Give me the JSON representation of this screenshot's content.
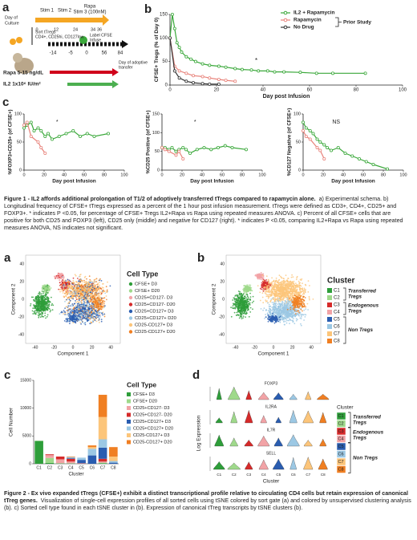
{
  "figure1": {
    "panel_a": {
      "label": "a",
      "stim1": "Stim 1",
      "stim2": "Stim 2",
      "rapa": "Rapa",
      "stim3": "Stim 3 (100nM)",
      "culture_label": [
        "Day of",
        "Culture"
      ],
      "culture_days": [
        "0",
        "12",
        "24",
        "34",
        "36"
      ],
      "sort": [
        "Sort tTregs",
        "CD4+, CD25hi, CD127low"
      ],
      "label_cfse": [
        "Label CFSE",
        "Infuse"
      ],
      "transfer_days": [
        "-14",
        "-5",
        "0",
        "56",
        "84"
      ],
      "transfer_label": [
        "Day of adoptive",
        "transfer"
      ],
      "rapa_dose": "Rapa 5-15 ng/dL",
      "il2_dose": "IL2 1x10⁶ IU/m²"
    },
    "panel_b": {
      "label": "b",
      "type": "line",
      "ylabel": "CFSE+ Tregs (% of Day 0)",
      "xlabel": "Day post Infusion",
      "xlim": [
        0,
        100
      ],
      "ylim": [
        0,
        150
      ],
      "xticks": [
        0,
        20,
        40,
        60,
        80,
        100
      ],
      "yticks": [
        0,
        50,
        100,
        150
      ],
      "annotation": "*",
      "bracket_label": "Prior Study",
      "series": [
        {
          "name": "IL2 + Rapamycin",
          "color": "#3aa83a",
          "x": [
            0,
            1,
            2,
            3,
            4,
            5,
            7,
            9,
            11,
            14,
            17,
            21,
            24,
            28,
            31,
            35,
            38,
            42,
            45,
            49,
            56,
            63,
            70,
            84
          ],
          "values": [
            100,
            150,
            120,
            90,
            80,
            70,
            60,
            55,
            50,
            45,
            42,
            40,
            38,
            35,
            33,
            32,
            30,
            30,
            28,
            28,
            27,
            25,
            25,
            25
          ]
        },
        {
          "name": "Rapamycin",
          "color": "#e8827a",
          "x": [
            0,
            2,
            4,
            7,
            10,
            14,
            17,
            21,
            24,
            28
          ],
          "values": [
            100,
            40,
            30,
            25,
            20,
            18,
            15,
            12,
            10,
            8
          ]
        },
        {
          "name": "No Drug",
          "color": "#333333",
          "x": [
            0,
            2,
            4,
            7,
            10,
            14,
            17,
            21
          ],
          "values": [
            100,
            30,
            15,
            8,
            5,
            3,
            2,
            2
          ]
        }
      ]
    },
    "panel_c": {
      "label": "c",
      "charts": [
        {
          "type": "line",
          "ylabel": "%FOXP3+CD25+ (of CFSE+)",
          "xlabel": "Day post Infusion",
          "xlim": [
            0,
            100
          ],
          "ylim": [
            0,
            100
          ],
          "xticks": [
            0,
            20,
            40,
            60,
            80,
            100
          ],
          "yticks": [
            0,
            50,
            100
          ],
          "annotation": "*",
          "series": [
            {
              "color": "#3aa83a",
              "x": [
                0,
                3,
                7,
                10,
                14,
                17,
                21,
                24,
                28,
                35,
                42,
                49,
                56,
                63,
                70,
                84
              ],
              "values": [
                75,
                80,
                85,
                70,
                75,
                70,
                60,
                65,
                55,
                60,
                65,
                70,
                60,
                65,
                60,
                65
              ]
            },
            {
              "color": "#e8827a",
              "x": [
                0,
                3,
                7,
                14,
                17,
                21
              ],
              "values": [
                80,
                85,
                60,
                50,
                40,
                30
              ]
            }
          ]
        },
        {
          "type": "line",
          "ylabel": "%CD25 Positive (of CFSE+)",
          "xlabel": "Day post Infusion",
          "xlim": [
            0,
            100
          ],
          "ylim": [
            0,
            150
          ],
          "xticks": [
            0,
            20,
            40,
            60,
            80,
            100
          ],
          "yticks": [
            0,
            50,
            100,
            150
          ],
          "annotation": "*",
          "series": [
            {
              "color": "#3aa83a",
              "x": [
                0,
                3,
                7,
                10,
                14,
                17,
                21,
                24,
                28,
                35,
                42,
                49,
                56,
                63,
                70,
                84
              ],
              "values": [
                60,
                60,
                55,
                60,
                50,
                55,
                60,
                55,
                45,
                55,
                60,
                55,
                60,
                65,
                60,
                55
              ]
            },
            {
              "color": "#e8827a",
              "x": [
                0,
                3,
                7,
                14,
                17,
                21
              ],
              "values": [
                60,
                55,
                50,
                40,
                50,
                30
              ]
            }
          ]
        },
        {
          "type": "line",
          "ylabel": "%CD127 Negative (of CFSE+)",
          "xlabel": "Day post Infusion",
          "xlim": [
            0,
            100
          ],
          "ylim": [
            0,
            100
          ],
          "xticks": [
            0,
            20,
            40,
            60,
            80,
            100
          ],
          "yticks": [
            0,
            50,
            100
          ],
          "annotation": "NS",
          "series": [
            {
              "color": "#3aa83a",
              "x": [
                0,
                3,
                7,
                10,
                14,
                17,
                21,
                24,
                28,
                35,
                42,
                49,
                56,
                63,
                70,
                84
              ],
              "values": [
                85,
                75,
                70,
                65,
                55,
                50,
                45,
                40,
                35,
                40,
                30,
                25,
                20,
                15,
                10,
                2
              ]
            },
            {
              "color": "#e8827a",
              "x": [
                0,
                3,
                7,
                14,
                17,
                21
              ],
              "values": [
                70,
                60,
                55,
                40,
                35,
                20
              ]
            }
          ]
        }
      ]
    },
    "caption": {
      "title": "Figure 1 - IL2 affords additional prolongation of T1/2 of adoptively transferred tTregs compared to rapamycin alone.",
      "body": "a) Experimental schema.  b) Longitudinal frequency of CFSE+ tTregs expressed as a percent of the 1 hour post infusion measurement. tTregs were defined as CD3+, CD4+, CD25+ and FOXP3+.  * indicates P <0.05, for percentage of CFSE+ Tregs IL2+Rapa vs Rapa using repeated measures ANOVA.  c) Percent of all CFSE+ cells that are positive for both CD25 and FOXP3 (left), CD25 only (middle) and negative for CD127 (right). * indicates P <0.05,  comparing IL2+Rapa vs Rapa using repeated measures ANOVA, NS indicates not significant."
    }
  },
  "figure2": {
    "panel_a": {
      "label": "a",
      "legend_title": "Cell Type",
      "xlabel": "Component 1",
      "ylabel": "Component 2",
      "xticks": [
        "-40",
        "-20",
        "0",
        "20",
        "40"
      ],
      "yticks": [
        "-40",
        "-20",
        "0",
        "20",
        "40"
      ],
      "legend": [
        {
          "name": "CFSE+ D3",
          "color": "#2e9e3a"
        },
        {
          "name": "CFSE+ D20",
          "color": "#9fd98b"
        },
        {
          "name": "CD25+CD127- D3",
          "color": "#f2a3a6"
        },
        {
          "name": "CD25+CD127- D20",
          "color": "#d62a2a"
        },
        {
          "name": "CD25+CD127+ D3",
          "color": "#2a5db0"
        },
        {
          "name": "CD25+CD127+ D20",
          "color": "#9cc8e4"
        },
        {
          "name": "CD25-CD127+ D3",
          "color": "#fcc57a"
        },
        {
          "name": "CD25-CD127+ D20",
          "color": "#f07f22"
        }
      ]
    },
    "panel_b": {
      "label": "b",
      "legend_title": "Cluster",
      "xlabel": "Component 1",
      "ylabel": "Component 2",
      "xticks": [
        "-40",
        "-20",
        "0",
        "20",
        "40"
      ],
      "yticks": [
        "-40",
        "-20",
        "0",
        "20",
        "40"
      ],
      "clusters": [
        {
          "name": "C1",
          "color": "#2e9e3a"
        },
        {
          "name": "C2",
          "color": "#9fd98b"
        },
        {
          "name": "C3",
          "color": "#d62a2a"
        },
        {
          "name": "C4",
          "color": "#f2a3a6"
        },
        {
          "name": "C5",
          "color": "#2a5db0"
        },
        {
          "name": "C6",
          "color": "#9cc8e4"
        },
        {
          "name": "C7",
          "color": "#fcc57a"
        },
        {
          "name": "C8",
          "color": "#f07f22"
        }
      ],
      "groups": [
        [
          "Transferred",
          "Tregs"
        ],
        [
          "Endogenous",
          "Tregs"
        ],
        [
          "Non Tregs"
        ]
      ]
    },
    "panel_c": {
      "label": "c",
      "type": "bar",
      "stacked": true,
      "legend_title": "Cell Type",
      "ylabel": "Cell Number",
      "xlabel": "Cluster",
      "categories": [
        "C1",
        "C2",
        "C3",
        "C4",
        "C5",
        "C6",
        "C7",
        "C8"
      ],
      "ylim": [
        0,
        15000
      ],
      "yticks": [
        0,
        5000,
        10000,
        15000
      ],
      "series": [
        {
          "name": "CFSE+ D3",
          "color": "#2e9e3a",
          "values": [
            4100,
            150,
            50,
            50,
            0,
            0,
            100,
            0
          ]
        },
        {
          "name": "CFSE+ D20",
          "color": "#9fd98b",
          "values": [
            50,
            900,
            50,
            50,
            0,
            0,
            100,
            0
          ]
        },
        {
          "name": "CD25+CD127- D3",
          "color": "#f2a3a6",
          "values": [
            0,
            500,
            700,
            300,
            50,
            0,
            200,
            0
          ]
        },
        {
          "name": "CD25+CD127- D20",
          "color": "#d62a2a",
          "values": [
            0,
            150,
            500,
            500,
            50,
            0,
            500,
            0
          ]
        },
        {
          "name": "CD25+CD127+ D3",
          "color": "#2a5db0",
          "values": [
            0,
            0,
            0,
            100,
            600,
            1500,
            2000,
            200
          ]
        },
        {
          "name": "CD25+CD127+ D20",
          "color": "#9cc8e4",
          "values": [
            0,
            0,
            0,
            200,
            400,
            1200,
            1500,
            300
          ]
        },
        {
          "name": "CD25-CD127+ D3",
          "color": "#fcc57a",
          "values": [
            0,
            0,
            0,
            0,
            0,
            300,
            4000,
            800
          ]
        },
        {
          "name": "CD25-CD127+ D20",
          "color": "#f07f22",
          "values": [
            0,
            0,
            0,
            100,
            0,
            300,
            4000,
            1700
          ]
        }
      ]
    },
    "panel_d": {
      "label": "d",
      "genes": [
        "FOXP3",
        "IL2RA",
        "IL7R",
        "SELL"
      ],
      "ylabel": "Log Expression",
      "xlabel": "Cluster",
      "legend_title": "Cluster",
      "clusters": [
        "C1",
        "C2",
        "C3",
        "C4",
        "C5",
        "C6",
        "C7",
        "C8"
      ],
      "groups": [
        [
          "Transferred",
          "Tregs"
        ],
        [
          "Endogenous",
          "Tregs"
        ],
        [
          "Non Tregs"
        ]
      ]
    },
    "caption": {
      "title": "Figure 2 - Ex vivo expanded tTregs (CFSE+) exhibit a distinct transcriptional profile relative to circulating CD4 cells but retain expression of canonical tTreg genes.",
      "body": "Visualization of single-cell expression profiles of all sorted cells using tSNE colored by sort gate (a) and colored by unsupervised clustering analysis (b).  c) Sorted cell type found in each tSNE cluster in (b).  Expression of canonical tTreg transcripts by tSNE clusters (b)."
    }
  }
}
